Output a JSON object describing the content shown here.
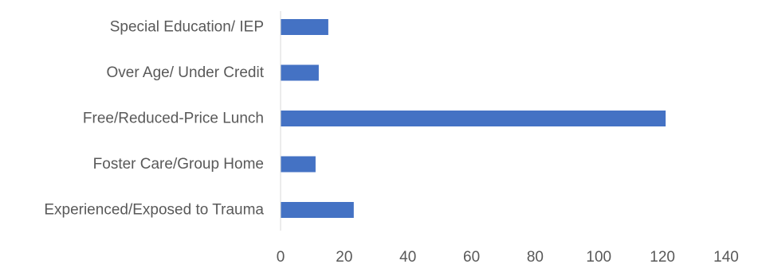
{
  "chart_data": {
    "type": "bar",
    "orientation": "horizontal",
    "categories": [
      "Special Education/ IEP",
      "Over Age/ Under Credit",
      "Free/Reduced-Price Lunch",
      "Foster Care/Group Home",
      "Experienced/Exposed to Trauma"
    ],
    "values": [
      15,
      12,
      121,
      11,
      23
    ],
    "xlim": [
      0,
      140
    ],
    "xticks": [
      0,
      20,
      40,
      60,
      80,
      100,
      120,
      140
    ],
    "title": "",
    "xlabel": "",
    "ylabel": "",
    "grid": false,
    "legend": "none",
    "bar_color": "#4472C4",
    "axis_color": "#D9D9D9",
    "label_color": "#595959"
  }
}
